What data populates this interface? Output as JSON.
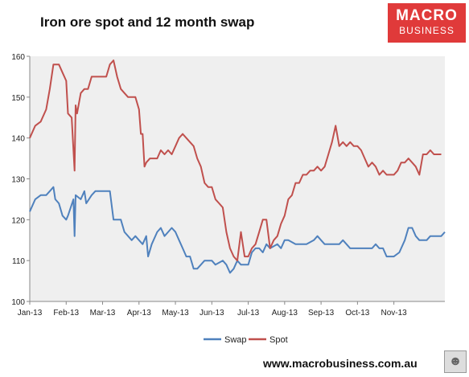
{
  "title": "Iron ore spot and 12 month swap",
  "logo": {
    "line1": "MACRO",
    "line2": "BUSINESS",
    "color": "#e03a3a"
  },
  "url": "www.macrobusiness.com.au",
  "chart_data": {
    "type": "line",
    "title": "Iron ore spot and 12 month swap",
    "xlabel": "",
    "ylabel": "",
    "ylim": [
      100,
      160
    ],
    "yticks": [
      100,
      110,
      120,
      130,
      140,
      150,
      160
    ],
    "xticks": [
      "Jan-13",
      "Feb-13",
      "Mar-13",
      "Apr-13",
      "May-13",
      "Jun-13",
      "Jul-13",
      "Aug-13",
      "Sep-13",
      "Oct-13",
      "Nov-13"
    ],
    "x_unit": "month index (0 = Jan-13)",
    "grid": false,
    "legend": "bottom",
    "plot_background": "#efefef",
    "series": [
      {
        "name": "Swap",
        "color": "#4f81bd",
        "points": [
          [
            0,
            122
          ],
          [
            0.15,
            125
          ],
          [
            0.3,
            126
          ],
          [
            0.45,
            126
          ],
          [
            0.55,
            127
          ],
          [
            0.65,
            128
          ],
          [
            0.7,
            125
          ],
          [
            0.8,
            124
          ],
          [
            0.9,
            121
          ],
          [
            1.0,
            120
          ],
          [
            1.05,
            121
          ],
          [
            1.2,
            125
          ],
          [
            1.23,
            116
          ],
          [
            1.26,
            126
          ],
          [
            1.4,
            125
          ],
          [
            1.5,
            127
          ],
          [
            1.55,
            124
          ],
          [
            1.7,
            126
          ],
          [
            1.8,
            127
          ],
          [
            2.0,
            127
          ],
          [
            2.2,
            127
          ],
          [
            2.3,
            120
          ],
          [
            2.5,
            120
          ],
          [
            2.6,
            117
          ],
          [
            2.8,
            115
          ],
          [
            2.9,
            116
          ],
          [
            3.0,
            115
          ],
          [
            3.1,
            114
          ],
          [
            3.2,
            116
          ],
          [
            3.25,
            111
          ],
          [
            3.35,
            114
          ],
          [
            3.5,
            117
          ],
          [
            3.6,
            118
          ],
          [
            3.7,
            116
          ],
          [
            3.8,
            117
          ],
          [
            3.9,
            118
          ],
          [
            4.0,
            117
          ],
          [
            4.1,
            115
          ],
          [
            4.2,
            113
          ],
          [
            4.3,
            111
          ],
          [
            4.4,
            111
          ],
          [
            4.5,
            108
          ],
          [
            4.6,
            108
          ],
          [
            4.7,
            109
          ],
          [
            4.8,
            110
          ],
          [
            5.0,
            110
          ],
          [
            5.1,
            109
          ],
          [
            5.3,
            110
          ],
          [
            5.4,
            109
          ],
          [
            5.5,
            107
          ],
          [
            5.6,
            108
          ],
          [
            5.7,
            110
          ],
          [
            5.8,
            109
          ],
          [
            6.0,
            109
          ],
          [
            6.1,
            112
          ],
          [
            6.2,
            113
          ],
          [
            6.3,
            113
          ],
          [
            6.4,
            112
          ],
          [
            6.5,
            114
          ],
          [
            6.6,
            113
          ],
          [
            6.8,
            114
          ],
          [
            6.9,
            113
          ],
          [
            7.0,
            115
          ],
          [
            7.1,
            115
          ],
          [
            7.3,
            114
          ],
          [
            7.5,
            114
          ],
          [
            7.6,
            114
          ],
          [
            7.8,
            115
          ],
          [
            7.9,
            116
          ],
          [
            8.0,
            115
          ],
          [
            8.1,
            114
          ],
          [
            8.3,
            114
          ],
          [
            8.5,
            114
          ],
          [
            8.6,
            115
          ],
          [
            8.8,
            113
          ],
          [
            9.0,
            113
          ],
          [
            9.2,
            113
          ],
          [
            9.4,
            113
          ],
          [
            9.5,
            114
          ],
          [
            9.6,
            113
          ],
          [
            9.7,
            113
          ],
          [
            9.8,
            111
          ],
          [
            10.0,
            111
          ],
          [
            10.15,
            112
          ],
          [
            10.3,
            115
          ],
          [
            10.4,
            118
          ],
          [
            10.5,
            118
          ],
          [
            10.6,
            116
          ],
          [
            10.7,
            115
          ],
          [
            10.8,
            115
          ],
          [
            10.9,
            115
          ],
          [
            11.0,
            116
          ],
          [
            11.1,
            116
          ],
          [
            11.3,
            116
          ],
          [
            11.4,
            117
          ]
        ]
      },
      {
        "name": "Spot",
        "color": "#c0504d",
        "points": [
          [
            0,
            140
          ],
          [
            0.15,
            143
          ],
          [
            0.3,
            144
          ],
          [
            0.45,
            147
          ],
          [
            0.55,
            152
          ],
          [
            0.65,
            158
          ],
          [
            0.8,
            158
          ],
          [
            0.9,
            156
          ],
          [
            1.0,
            154
          ],
          [
            1.05,
            146
          ],
          [
            1.15,
            145
          ],
          [
            1.23,
            132
          ],
          [
            1.26,
            148
          ],
          [
            1.3,
            146
          ],
          [
            1.4,
            151
          ],
          [
            1.5,
            152
          ],
          [
            1.6,
            152
          ],
          [
            1.7,
            155
          ],
          [
            1.8,
            155
          ],
          [
            2.0,
            155
          ],
          [
            2.1,
            155
          ],
          [
            2.2,
            158
          ],
          [
            2.3,
            159
          ],
          [
            2.4,
            155
          ],
          [
            2.5,
            152
          ],
          [
            2.6,
            151
          ],
          [
            2.7,
            150
          ],
          [
            2.8,
            150
          ],
          [
            2.9,
            150
          ],
          [
            3.0,
            147
          ],
          [
            3.05,
            141
          ],
          [
            3.1,
            141
          ],
          [
            3.15,
            133
          ],
          [
            3.2,
            134
          ],
          [
            3.3,
            135
          ],
          [
            3.4,
            135
          ],
          [
            3.5,
            135
          ],
          [
            3.6,
            137
          ],
          [
            3.7,
            136
          ],
          [
            3.8,
            137
          ],
          [
            3.9,
            136
          ],
          [
            4.0,
            138
          ],
          [
            4.1,
            140
          ],
          [
            4.2,
            141
          ],
          [
            4.3,
            140
          ],
          [
            4.4,
            139
          ],
          [
            4.5,
            138
          ],
          [
            4.6,
            135
          ],
          [
            4.7,
            133
          ],
          [
            4.8,
            129
          ],
          [
            4.9,
            128
          ],
          [
            5.0,
            128
          ],
          [
            5.1,
            125
          ],
          [
            5.2,
            124
          ],
          [
            5.3,
            123
          ],
          [
            5.4,
            117
          ],
          [
            5.5,
            113
          ],
          [
            5.6,
            111
          ],
          [
            5.7,
            110
          ],
          [
            5.8,
            117
          ],
          [
            5.9,
            111
          ],
          [
            6.0,
            111
          ],
          [
            6.1,
            113
          ],
          [
            6.2,
            114
          ],
          [
            6.3,
            117
          ],
          [
            6.4,
            120
          ],
          [
            6.5,
            120
          ],
          [
            6.6,
            113
          ],
          [
            6.7,
            115
          ],
          [
            6.8,
            116
          ],
          [
            6.9,
            119
          ],
          [
            7.0,
            121
          ],
          [
            7.1,
            125
          ],
          [
            7.2,
            126
          ],
          [
            7.3,
            129
          ],
          [
            7.4,
            129
          ],
          [
            7.5,
            131
          ],
          [
            7.6,
            131
          ],
          [
            7.7,
            132
          ],
          [
            7.8,
            132
          ],
          [
            7.9,
            133
          ],
          [
            8.0,
            132
          ],
          [
            8.1,
            133
          ],
          [
            8.2,
            136
          ],
          [
            8.3,
            139
          ],
          [
            8.4,
            143
          ],
          [
            8.5,
            138
          ],
          [
            8.6,
            139
          ],
          [
            8.7,
            138
          ],
          [
            8.8,
            139
          ],
          [
            8.9,
            138
          ],
          [
            9.0,
            138
          ],
          [
            9.1,
            137
          ],
          [
            9.2,
            135
          ],
          [
            9.3,
            133
          ],
          [
            9.4,
            134
          ],
          [
            9.5,
            133
          ],
          [
            9.6,
            131
          ],
          [
            9.7,
            132
          ],
          [
            9.8,
            131
          ],
          [
            9.9,
            131
          ],
          [
            10.0,
            131
          ],
          [
            10.1,
            132
          ],
          [
            10.2,
            134
          ],
          [
            10.3,
            134
          ],
          [
            10.4,
            135
          ],
          [
            10.5,
            134
          ],
          [
            10.6,
            133
          ],
          [
            10.7,
            131
          ],
          [
            10.8,
            136
          ],
          [
            10.9,
            136
          ],
          [
            11.0,
            137
          ],
          [
            11.1,
            136
          ],
          [
            11.2,
            136
          ],
          [
            11.3,
            136
          ]
        ]
      }
    ]
  }
}
